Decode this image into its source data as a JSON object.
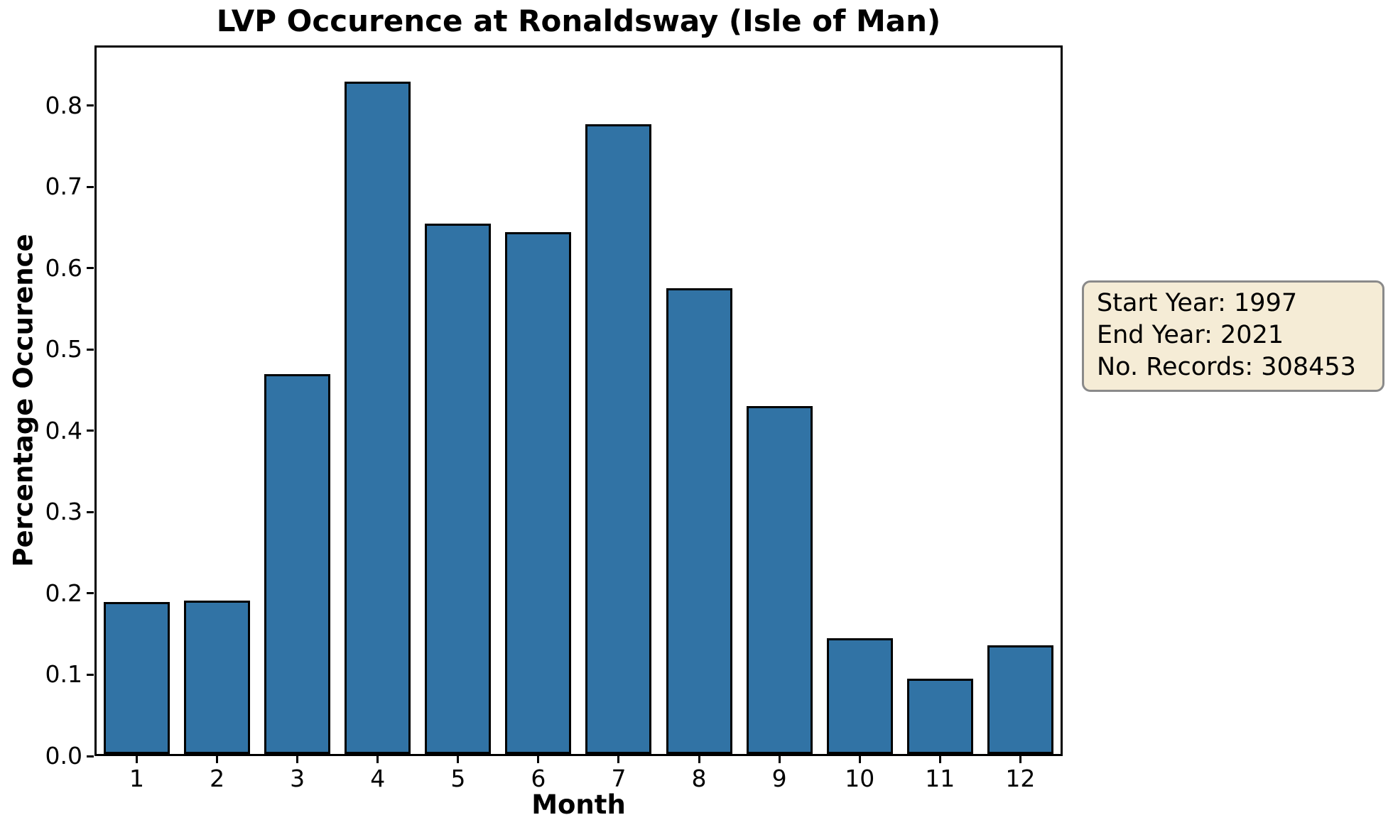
{
  "figure_title": "LVP Occurence at Ronaldsway (Isle of Man)",
  "chart_data": {
    "type": "bar",
    "title": "LVP Occurence at Ronaldsway (Isle of Man)",
    "xlabel": "Month",
    "ylabel": "Percentage Occurence",
    "categories": [
      "1",
      "2",
      "3",
      "4",
      "5",
      "6",
      "7",
      "8",
      "9",
      "10",
      "11",
      "12"
    ],
    "values": [
      0.188,
      0.19,
      0.47,
      0.832,
      0.656,
      0.646,
      0.779,
      0.576,
      0.43,
      0.143,
      0.093,
      0.134
    ],
    "ylim": [
      0,
      0.874
    ],
    "ytick_labels": [
      "0.0",
      "0.1",
      "0.2",
      "0.3",
      "0.4",
      "0.5",
      "0.6",
      "0.7",
      "0.8"
    ],
    "bar_color": "#3173a5",
    "bar_edge_color": "#000000",
    "grid": false,
    "legend": false,
    "annotation_box": {
      "lines": [
        "Start Year: 1997",
        "End Year: 2021",
        "No. Records: 308453"
      ],
      "position": "right of plot",
      "background": "#f5ecd6",
      "border_color": "#8a8a8a"
    }
  },
  "info_box": {
    "lines": [
      "Start Year: 1997",
      "End Year: 2021",
      "No. Records: 308453"
    ],
    "background": "#f5ecd6",
    "border": "#8a8a8a"
  }
}
